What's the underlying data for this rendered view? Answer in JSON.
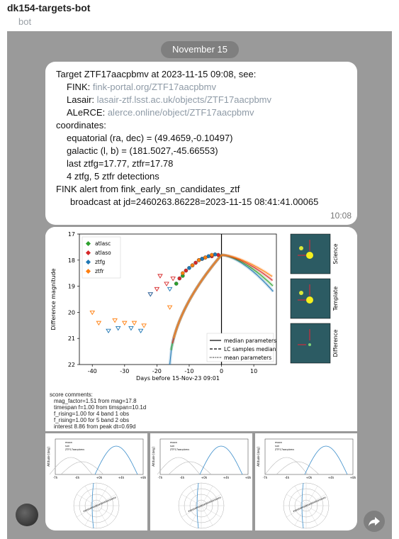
{
  "header": {
    "title": "dk154-targets-bot",
    "subtitle": "bot"
  },
  "date_separator": "November 15",
  "message": {
    "line1": "Target ZTF17aacpbmv at 2023-11-15 09:08, see:",
    "fink_label": "FINK:",
    "fink_link": "fink-portal.org/ZTF17aacpbmv",
    "lasair_label": "Lasair:",
    "lasair_link": "lasair-ztf.lsst.ac.uk/objects/ZTF17aacpbmv",
    "alerce_label": "ALeRCE:",
    "alerce_link": "alerce.online/object/ZTF17aacpbmv",
    "coordinates": "coordinates:",
    "equatorial": "equatorial (ra, dec) = (49.4659,-0.10497)",
    "galactic": "galactic (l, b) = (181.5027,-45.66553)",
    "last": "last ztfg=17.77, ztfr=17.78",
    "detections": "4 ztfg, 5 ztfr detections",
    "fink_alert": "FINK alert from fink_early_sn_candidates_ztf",
    "broadcast": "broadcast at jd=2460263.86228=2023-11-15 08:41:41.00065",
    "time": "10:08"
  },
  "score": {
    "title": "score comments:",
    "lines": [
      "mag_factor=1.51 from mag=17.8",
      "timespan f=1.00 from timspan=10.1d",
      "f_rising=1.00 for 4 band 1 obs",
      "f_rising=1.00 for 5 band 2 obs",
      "interest 8.86 from peak dt=0.69d"
    ]
  },
  "chart_data": {
    "type": "scatter",
    "title": "",
    "xlabel": "Days before 15-Nov-23 09:01",
    "ylabel": "Difference magnitude",
    "xlim": [
      -44,
      17
    ],
    "ylim": [
      22,
      17
    ],
    "xticks": [
      -40,
      -30,
      -20,
      -10,
      0,
      10
    ],
    "yticks": [
      17,
      18,
      19,
      20,
      21,
      22
    ],
    "legend_placement": "top-left",
    "series": [
      {
        "name": "atlasc",
        "color": "#2ca02c",
        "points": [
          [
            -14,
            18.9
          ],
          [
            -12,
            18.6
          ],
          [
            -9,
            18.2
          ],
          [
            -7,
            18.0
          ],
          [
            -5,
            17.9
          ]
        ],
        "upper_limits": []
      },
      {
        "name": "atlaso",
        "color": "#d62728",
        "points": [
          [
            -13,
            18.7
          ],
          [
            -11,
            18.4
          ],
          [
            -8,
            18.1
          ],
          [
            -6,
            17.95
          ],
          [
            -3,
            17.85
          ],
          [
            -1,
            17.8
          ]
        ],
        "upper_limits": [
          [
            -19,
            18.6
          ],
          [
            -17,
            18.9
          ],
          [
            -15,
            18.7
          ],
          [
            -22,
            19.3
          ],
          [
            -20,
            19.1
          ]
        ]
      },
      {
        "name": "ztfg",
        "color": "#1f77b4",
        "points": [
          [
            -10,
            18.3
          ],
          [
            -6,
            17.95
          ],
          [
            -4,
            17.85
          ],
          [
            -2,
            17.78
          ]
        ],
        "upper_limits": [
          [
            -35,
            20.7
          ],
          [
            -32,
            20.6
          ],
          [
            -28,
            20.6
          ],
          [
            -25,
            20.7
          ],
          [
            -22,
            19.3
          ],
          [
            -16,
            19.1
          ]
        ]
      },
      {
        "name": "ztfr",
        "color": "#ff7f0e",
        "points": [
          [
            -12,
            18.5
          ],
          [
            -9,
            18.2
          ],
          [
            -7,
            18.0
          ],
          [
            -5,
            17.9
          ],
          [
            -3,
            17.8
          ]
        ],
        "upper_limits": [
          [
            -40,
            20.0
          ],
          [
            -38,
            20.4
          ],
          [
            -33,
            20.3
          ],
          [
            -30,
            20.4
          ],
          [
            -27,
            20.4
          ],
          [
            -24,
            20.5
          ],
          [
            -16,
            19.8
          ]
        ]
      }
    ],
    "peak_line_x": 0,
    "model_legend": [
      "median parameters",
      "LC samples median",
      "mean parameters"
    ]
  },
  "stamps": [
    "Science",
    "Template",
    "Difference"
  ],
  "vis_panels": [
    {
      "x_ticks": [
        "-7h",
        "-4h",
        "+0h",
        "+4h",
        "+8h"
      ],
      "ylabel": "Altitude [deg]",
      "legend": [
        "moon",
        "sun",
        "ZTF17aacpbmv"
      ]
    },
    {
      "x_ticks": [
        "-7h",
        "-4h",
        "+0h",
        "+4h",
        "+8h"
      ],
      "ylabel": "Altitude [deg]",
      "legend": [
        "moon",
        "sun",
        "ZTF17aacpbmv"
      ]
    },
    {
      "x_ticks": [
        "-7h",
        "-4h",
        "+0h",
        "+4h",
        "+8h"
      ],
      "ylabel": "Altitude [deg]",
      "legend": [
        "moon",
        "sun",
        "ZTF17aacpbmv"
      ]
    }
  ],
  "colors": {
    "chat_bg": "#9a9a9a",
    "bubble": "#ffffff",
    "link": "#8e9aa6"
  }
}
